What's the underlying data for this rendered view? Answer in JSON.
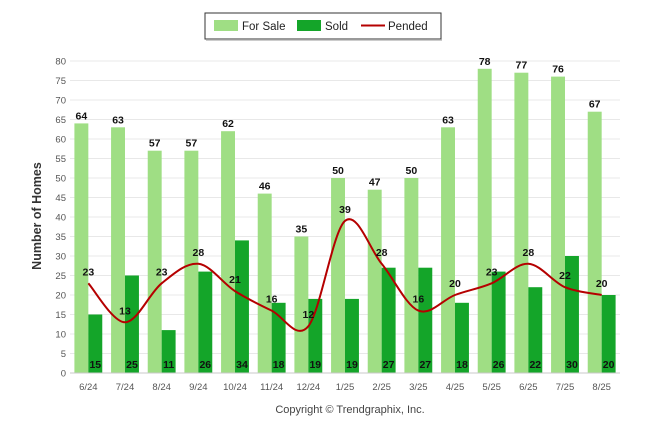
{
  "chart_data": {
    "type": "bar",
    "ylabel": "Number of Homes",
    "ylim": [
      0,
      80
    ],
    "yticks": [
      0,
      5,
      10,
      15,
      20,
      25,
      30,
      35,
      40,
      45,
      50,
      55,
      60,
      65,
      70,
      75,
      80
    ],
    "grid": true,
    "legend_position": "top-center",
    "categories": [
      "6/24",
      "7/24",
      "8/24",
      "9/24",
      "10/24",
      "11/24",
      "12/24",
      "1/25",
      "2/25",
      "3/25",
      "4/25",
      "5/25",
      "6/25",
      "7/25",
      "8/25"
    ],
    "series": [
      {
        "name": "For Sale",
        "kind": "bar",
        "color": "#9fde84",
        "values": [
          64,
          63,
          57,
          57,
          62,
          46,
          35,
          50,
          47,
          50,
          63,
          78,
          77,
          76,
          67
        ]
      },
      {
        "name": "Sold",
        "kind": "bar",
        "color": "#14a529",
        "values": [
          15,
          25,
          11,
          26,
          34,
          18,
          19,
          19,
          27,
          27,
          18,
          26,
          22,
          30,
          20
        ]
      },
      {
        "name": "Pended",
        "kind": "line",
        "color": "#b50000",
        "values": [
          23,
          13,
          23,
          28,
          21,
          16,
          12,
          39,
          28,
          16,
          20,
          23,
          28,
          22,
          20
        ]
      }
    ]
  },
  "credit": "Copyright © Trendgraphix, Inc."
}
